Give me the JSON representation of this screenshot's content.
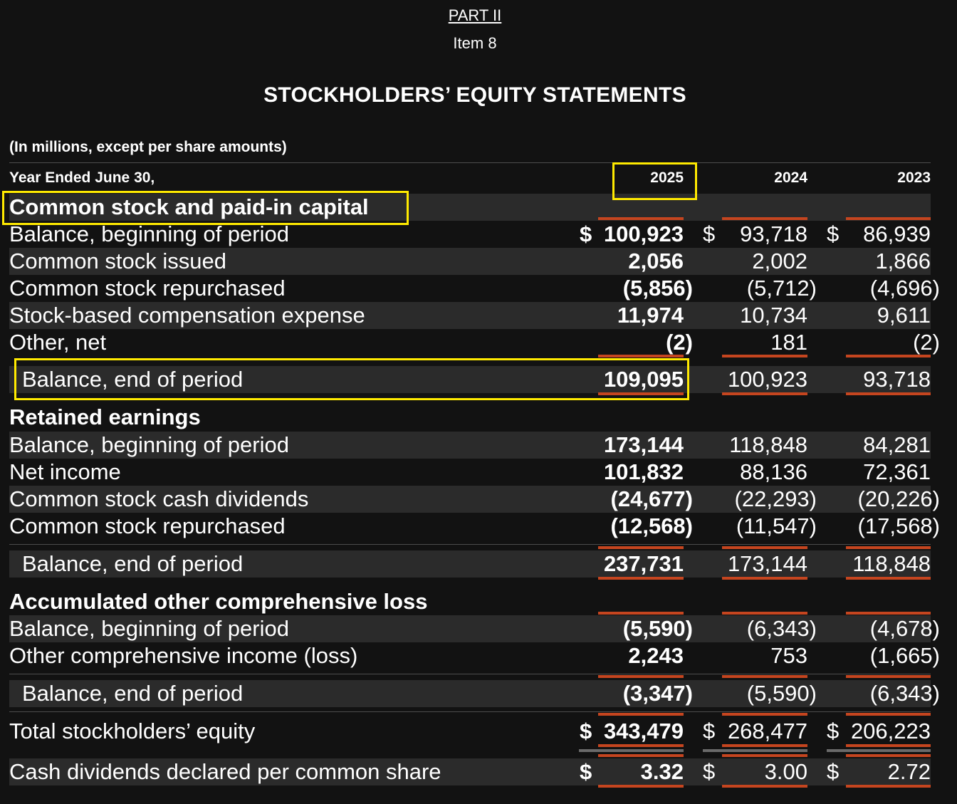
{
  "header": {
    "part": "PART II",
    "item": "Item 8",
    "title": "STOCKHOLDERS’ EQUITY STATEMENTS"
  },
  "units_note": "(In millions, except per share amounts)",
  "columns": {
    "label": "Year Ended June 30,",
    "years": [
      "2025",
      "2024",
      "2023"
    ]
  },
  "sections": [
    {
      "title": "Common stock and paid-in capital",
      "rows": [
        {
          "label": "Balance, beginning of period",
          "values": [
            "100,923",
            "93,718",
            "86,939"
          ],
          "currency": [
            "$",
            "$",
            "$"
          ]
        },
        {
          "label": "Common stock issued",
          "values": [
            "2,056",
            "2,002",
            "1,866"
          ]
        },
        {
          "label": "Common stock repurchased",
          "values": [
            "(5,856)",
            "(5,712)",
            "(4,696)"
          ]
        },
        {
          "label": "Stock-based compensation expense",
          "values": [
            "11,974",
            "10,734",
            "9,611"
          ]
        },
        {
          "label": "Other, net",
          "values": [
            "(2)",
            "181",
            "(2)"
          ]
        }
      ],
      "total": {
        "label": "Balance, end of period",
        "values": [
          "109,095",
          "100,923",
          "93,718"
        ]
      }
    },
    {
      "title": "Retained earnings",
      "rows": [
        {
          "label": "Balance, beginning of period",
          "values": [
            "173,144",
            "118,848",
            "84,281"
          ]
        },
        {
          "label": "Net income",
          "values": [
            "101,832",
            "88,136",
            "72,361"
          ]
        },
        {
          "label": "Common stock cash dividends",
          "values": [
            "(24,677)",
            "(22,293)",
            "(20,226)"
          ]
        },
        {
          "label": "Common stock repurchased",
          "values": [
            "(12,568)",
            "(11,547)",
            "(17,568)"
          ]
        }
      ],
      "total": {
        "label": "Balance, end of period",
        "values": [
          "237,731",
          "173,144",
          "118,848"
        ]
      }
    },
    {
      "title": "Accumulated other comprehensive loss",
      "rows": [
        {
          "label": "Balance, beginning of period",
          "values": [
            "(5,590)",
            "(6,343)",
            "(4,678)"
          ]
        },
        {
          "label": "Other comprehensive income (loss)",
          "values": [
            "2,243",
            "753",
            "(1,665)"
          ]
        }
      ],
      "total": {
        "label": "Balance, end of period",
        "values": [
          "(3,347)",
          "(5,590)",
          "(6,343)"
        ]
      }
    }
  ],
  "grand_total": {
    "label": "Total stockholders’ equity",
    "values": [
      "343,479",
      "268,477",
      "206,223"
    ],
    "currency": [
      "$",
      "$",
      "$"
    ]
  },
  "dividends_per_share": {
    "label": "Cash dividends declared per common share",
    "values": [
      "3.32",
      "3.00",
      "2.72"
    ],
    "currency": [
      "$",
      "$",
      "$"
    ]
  },
  "colors": {
    "background": "#121212",
    "band": "#2b2b2b",
    "rule": "#c5451f",
    "highlight": "#ffea00"
  }
}
